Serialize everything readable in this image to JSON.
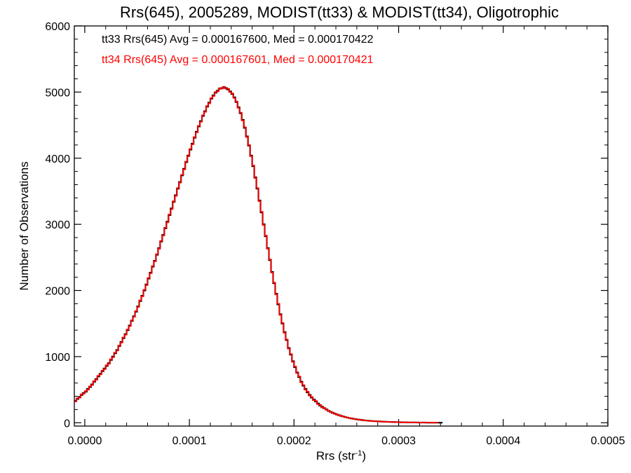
{
  "chart_data": {
    "type": "histogram",
    "title": "Rrs(645), 2005289, MODIST(tt33) & MODIST(tt34), Oligotrophic",
    "xlabel": {
      "base": "Rrs (str",
      "sup": "-1",
      "end": ")"
    },
    "ylabel": "Number of Observations",
    "xlim": [
      -1e-05,
      0.0005
    ],
    "ylim": [
      -50,
      6000
    ],
    "x_ticks": [
      0.0,
      0.0001,
      0.0002,
      0.0003,
      0.0004,
      0.0005
    ],
    "x_tick_labels": [
      "0.0000",
      "0.0001",
      "0.0002",
      "0.0003",
      "0.0004",
      "0.0005"
    ],
    "y_ticks": [
      0,
      1000,
      2000,
      3000,
      4000,
      5000,
      6000
    ],
    "y_tick_labels": [
      "0",
      "1000",
      "2000",
      "3000",
      "4000",
      "5000",
      "6000"
    ],
    "x_minor_per_major": 4,
    "y_minor_per_major": 4,
    "bin_start": -1e-05,
    "bin_width": 2e-06,
    "annotations": [
      {
        "text": "tt33 Rrs(645) Avg = 0.000167600, Med = 0.000170422",
        "color": "#000000"
      },
      {
        "text": "tt34 Rrs(645) Avg = 0.000167601, Med = 0.000170421",
        "color": "#ff0000"
      }
    ],
    "series": [
      {
        "color": "#000000",
        "values": [
          330,
          360,
          390,
          420,
          450,
          470,
          510,
          540,
          580,
          620,
          660,
          700,
          740,
          780,
          820,
          860,
          900,
          950,
          1000,
          1050,
          1100,
          1160,
          1220,
          1280,
          1340,
          1400,
          1470,
          1540,
          1610,
          1680,
          1760,
          1840,
          1920,
          2000,
          2090,
          2180,
          2270,
          2360,
          2450,
          2540,
          2640,
          2740,
          2840,
          2940,
          3040,
          3140,
          3240,
          3340,
          3440,
          3540,
          3640,
          3740,
          3840,
          3940,
          4040,
          4130,
          4220,
          4310,
          4400,
          4480,
          4560,
          4640,
          4710,
          4780,
          4840,
          4900,
          4950,
          4990,
          5020,
          5050,
          5060,
          5070,
          5060,
          5040,
          5010,
          4970,
          4920,
          4850,
          4770,
          4680,
          4580,
          4460,
          4330,
          4190,
          4040,
          3880,
          3710,
          3540,
          3360,
          3180,
          3000,
          2820,
          2640,
          2460,
          2280,
          2110,
          1950,
          1790,
          1640,
          1500,
          1370,
          1250,
          1130,
          1030,
          930,
          840,
          760,
          690,
          620,
          560,
          510,
          460,
          420,
          380,
          350,
          320,
          290,
          260,
          240,
          220,
          200,
          180,
          165,
          150,
          137,
          125,
          114,
          104,
          95,
          86,
          78,
          71,
          65,
          59,
          54,
          49,
          45,
          41,
          37,
          34,
          31,
          28,
          26,
          24,
          22,
          20,
          18,
          16,
          15,
          14,
          13,
          12,
          11,
          10,
          9,
          8,
          7,
          6,
          6,
          5,
          5,
          4,
          4,
          4,
          3,
          3,
          3,
          3,
          2,
          2,
          2,
          2,
          2,
          1,
          1,
          1
        ]
      },
      {
        "color": "#ff0000",
        "values": [
          320,
          370,
          380,
          430,
          440,
          480,
          500,
          550,
          570,
          630,
          650,
          710,
          730,
          790,
          810,
          870,
          890,
          960,
          990,
          1060,
          1090,
          1170,
          1210,
          1290,
          1330,
          1410,
          1460,
          1550,
          1600,
          1690,
          1750,
          1850,
          1910,
          2010,
          2080,
          2190,
          2260,
          2370,
          2440,
          2550,
          2630,
          2750,
          2830,
          2950,
          3030,
          3150,
          3230,
          3350,
          3430,
          3550,
          3630,
          3750,
          3830,
          3950,
          4030,
          4140,
          4210,
          4320,
          4390,
          4490,
          4550,
          4650,
          4700,
          4790,
          4830,
          4910,
          4940,
          5000,
          5010,
          5060,
          5050,
          5080,
          5050,
          5050,
          5000,
          4980,
          4910,
          4860,
          4760,
          4690,
          4570,
          4470,
          4320,
          4200,
          4030,
          3890,
          3700,
          3550,
          3350,
          3190,
          2990,
          2830,
          2630,
          2470,
          2270,
          2120,
          1940,
          1800,
          1630,
          1510,
          1360,
          1260,
          1120,
          1040,
          920,
          850,
          750,
          700,
          610,
          570,
          500,
          470,
          410,
          390,
          340,
          330,
          280,
          270,
          230,
          225,
          195,
          185,
          160,
          155,
          133,
          128,
          111,
          107,
          92,
          89,
          76,
          73,
          63,
          61,
          52,
          51,
          43,
          43,
          36,
          35,
          30,
          29,
          25,
          25,
          21,
          21,
          17,
          17,
          14,
          15,
          12,
          13,
          10,
          11,
          8,
          9,
          6,
          7,
          5,
          6,
          4,
          5,
          3,
          4,
          3,
          4,
          2,
          3,
          2,
          3,
          1,
          2,
          1,
          2
        ]
      }
    ]
  }
}
